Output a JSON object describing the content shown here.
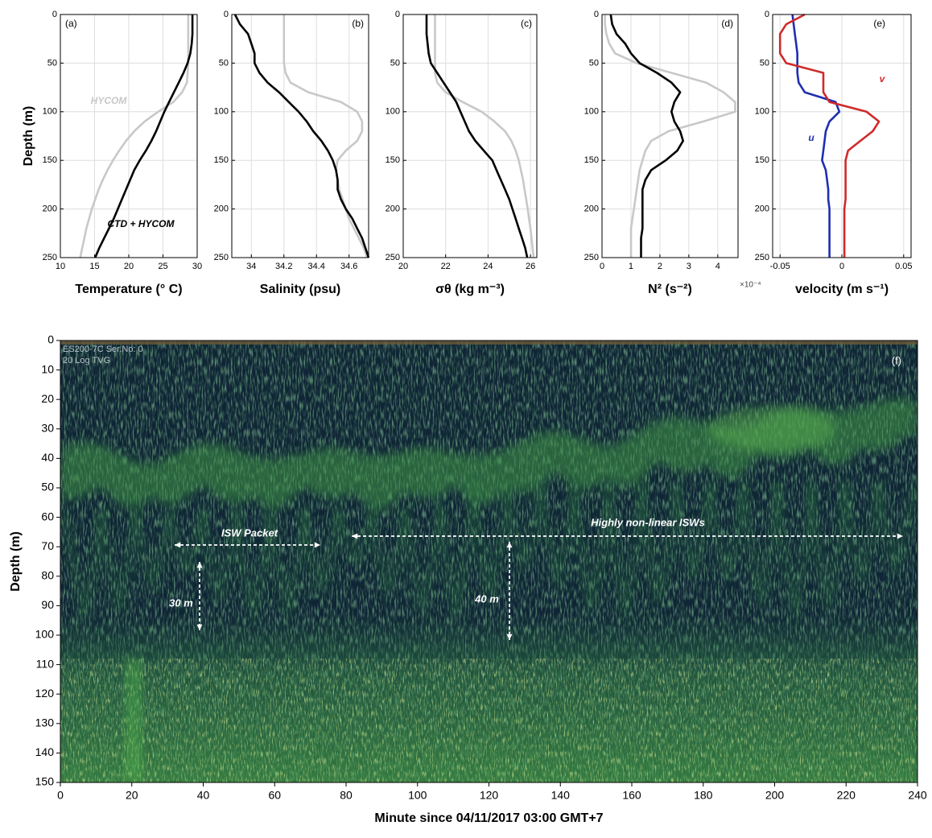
{
  "chart_data": [
    {
      "type": "line",
      "label": "(a)",
      "xlabel": "Temperature (° C)",
      "ylabel": "Depth (m)",
      "y": [
        0,
        10,
        20,
        30,
        40,
        50,
        60,
        70,
        80,
        90,
        100,
        110,
        120,
        130,
        140,
        150,
        160,
        170,
        180,
        190,
        200,
        210,
        220,
        230,
        240,
        250
      ],
      "series": [
        {
          "name": "HYCOM",
          "color": "#c8c8c8",
          "values": [
            28.7,
            28.7,
            28.7,
            28.7,
            28.7,
            28.7,
            28.6,
            28.5,
            27.8,
            26.5,
            24.3,
            22.3,
            20.8,
            19.6,
            18.6,
            17.7,
            16.9,
            16.2,
            15.6,
            15.1,
            14.6,
            14.2,
            13.8,
            13.5,
            13.2,
            12.9
          ]
        },
        {
          "name": "CTD + HYCOM",
          "color": "#000000",
          "values": [
            29.3,
            29.3,
            29.3,
            29.2,
            29.0,
            28.6,
            28.0,
            27.3,
            26.6,
            25.9,
            25.2,
            24.6,
            24.0,
            23.3,
            22.5,
            21.6,
            20.8,
            20.2,
            19.6,
            19.0,
            18.4,
            17.8,
            17.1,
            16.4,
            15.7,
            15.1
          ]
        }
      ],
      "xlim": [
        10,
        30
      ],
      "xticks": [
        10,
        15,
        20,
        25,
        30
      ],
      "ylim": [
        0,
        250
      ],
      "yticks": [
        0,
        50,
        100,
        150,
        200,
        250
      ],
      "grid": true
    },
    {
      "type": "line",
      "label": "(b)",
      "xlabel": "Salinity (psu)",
      "y": [
        0,
        10,
        20,
        30,
        40,
        50,
        60,
        70,
        80,
        90,
        100,
        110,
        120,
        130,
        140,
        150,
        160,
        170,
        180,
        190,
        200,
        210,
        220,
        230,
        240,
        250
      ],
      "series": [
        {
          "color": "#c8c8c8",
          "values": [
            34.2,
            34.2,
            34.2,
            34.2,
            34.2,
            34.2,
            34.21,
            34.24,
            34.35,
            34.55,
            34.65,
            34.68,
            34.68,
            34.65,
            34.58,
            34.53,
            34.52,
            34.53,
            34.54,
            34.56,
            34.58,
            34.6,
            34.63,
            34.66,
            34.69,
            34.71
          ]
        },
        {
          "color": "#000000",
          "values": [
            33.9,
            33.93,
            33.98,
            34.0,
            34.02,
            34.02,
            34.05,
            34.1,
            34.17,
            34.23,
            34.29,
            34.34,
            34.38,
            34.43,
            34.47,
            34.5,
            34.52,
            34.53,
            34.53,
            34.55,
            34.58,
            34.62,
            34.65,
            34.68,
            34.7,
            34.72
          ]
        }
      ],
      "xlim": [
        33.88,
        34.72
      ],
      "xticks": [
        34,
        34.2,
        34.4,
        34.6
      ],
      "ylim": [
        0,
        250
      ],
      "yticks": [
        0,
        50,
        100,
        150,
        200,
        250
      ],
      "grid": true
    },
    {
      "type": "line",
      "label": "(c)",
      "xlabel": "σθ (kg m⁻³)",
      "y": [
        0,
        10,
        20,
        30,
        40,
        50,
        60,
        70,
        80,
        90,
        100,
        110,
        120,
        130,
        140,
        150,
        160,
        170,
        180,
        190,
        200,
        210,
        220,
        230,
        240,
        250
      ],
      "series": [
        {
          "color": "#c8c8c8",
          "values": [
            21.5,
            21.5,
            21.5,
            21.5,
            21.5,
            21.5,
            21.5,
            21.6,
            22.0,
            22.8,
            23.7,
            24.3,
            24.8,
            25.1,
            25.3,
            25.45,
            25.55,
            25.65,
            25.72,
            25.8,
            25.87,
            25.93,
            26.0,
            26.05,
            26.1,
            26.15
          ]
        },
        {
          "color": "#000000",
          "values": [
            21.1,
            21.1,
            21.1,
            21.15,
            21.2,
            21.3,
            21.6,
            21.9,
            22.2,
            22.5,
            22.7,
            22.9,
            23.1,
            23.4,
            23.8,
            24.2,
            24.4,
            24.6,
            24.8,
            25.0,
            25.15,
            25.3,
            25.45,
            25.6,
            25.75,
            25.85
          ]
        }
      ],
      "xlim": [
        20,
        26.3
      ],
      "xticks": [
        20,
        22,
        24,
        26
      ],
      "ylim": [
        0,
        250
      ],
      "yticks": [
        0,
        50,
        100,
        150,
        200,
        250
      ],
      "grid": true
    },
    {
      "type": "line",
      "label": "(d)",
      "xlabel": "N² (s⁻²)",
      "x_multiplier_label": "×10⁻⁴",
      "y": [
        0,
        10,
        20,
        30,
        40,
        50,
        60,
        70,
        80,
        90,
        100,
        110,
        120,
        130,
        140,
        150,
        160,
        170,
        180,
        190,
        200,
        210,
        220,
        230,
        240,
        250
      ],
      "series": [
        {
          "color": "#c8c8c8",
          "values": [
            0.1,
            0.1,
            0.15,
            0.25,
            0.45,
            1.2,
            2.4,
            3.6,
            4.2,
            4.6,
            4.6,
            3.5,
            2.3,
            1.7,
            1.5,
            1.4,
            1.3,
            1.25,
            1.2,
            1.15,
            1.1,
            1.05,
            1.0,
            1.0,
            1.0,
            1.0
          ]
        },
        {
          "color": "#000000",
          "values": [
            0.3,
            0.35,
            0.5,
            0.8,
            1.0,
            1.3,
            1.9,
            2.4,
            2.7,
            2.5,
            2.4,
            2.5,
            2.7,
            2.8,
            2.6,
            2.2,
            1.7,
            1.5,
            1.4,
            1.4,
            1.4,
            1.4,
            1.4,
            1.35,
            1.35,
            1.35
          ]
        }
      ],
      "xlim": [
        0,
        4.7
      ],
      "xticks": [
        0,
        1,
        2,
        3,
        4
      ],
      "ylim": [
        0,
        250
      ],
      "yticks": [
        0,
        50,
        100,
        150,
        200,
        250
      ],
      "grid": true
    },
    {
      "type": "line",
      "label": "(e)",
      "xlabel": "velocity (m s⁻¹)",
      "y": [
        0,
        10,
        20,
        30,
        40,
        50,
        60,
        70,
        80,
        90,
        100,
        110,
        120,
        130,
        140,
        150,
        160,
        170,
        180,
        190,
        200,
        210,
        220,
        230,
        240,
        250
      ],
      "series": [
        {
          "name": "u",
          "color": "#1f2fb0",
          "values": [
            -0.04,
            -0.039,
            -0.038,
            -0.037,
            -0.036,
            -0.036,
            -0.036,
            -0.035,
            -0.03,
            -0.005,
            -0.002,
            -0.01,
            -0.013,
            -0.014,
            -0.015,
            -0.016,
            -0.013,
            -0.012,
            -0.011,
            -0.011,
            -0.01,
            -0.01,
            -0.01,
            -0.01,
            -0.01,
            -0.01
          ]
        },
        {
          "name": "v",
          "color": "#d02a2a",
          "values": [
            -0.03,
            -0.045,
            -0.05,
            -0.05,
            -0.05,
            -0.045,
            -0.015,
            -0.015,
            -0.015,
            -0.01,
            0.02,
            0.03,
            0.025,
            0.015,
            0.005,
            0.003,
            0.003,
            0.003,
            0.003,
            0.003,
            0.002,
            0.002,
            0.002,
            0.002,
            0.002,
            0.002
          ]
        }
      ],
      "xlim": [
        -0.056,
        0.056
      ],
      "xticks": [
        -0.05,
        0,
        0.05
      ],
      "ylim": [
        0,
        250
      ],
      "yticks": [
        0,
        50,
        100,
        150,
        200,
        250
      ],
      "grid": true
    },
    {
      "type": "echogram",
      "label": "(f)",
      "xlabel": "Minute since 04/11/2017 03:00 GMT+7",
      "ylabel": "Depth (m)",
      "instrument_text": [
        "ES200-7C Ser.No: 0",
        "20 Log TVG"
      ],
      "annotations": [
        "ISW Packet",
        "Highly non-linear ISWs",
        "30 m",
        "40 m"
      ],
      "xlim": [
        0,
        240
      ],
      "xticks": [
        0,
        20,
        40,
        60,
        80,
        100,
        120,
        140,
        160,
        180,
        200,
        220,
        240
      ],
      "ylim": [
        0,
        150
      ],
      "yticks": [
        0,
        10,
        20,
        30,
        40,
        50,
        60,
        70,
        80,
        90,
        100,
        110,
        120,
        130,
        140,
        150
      ]
    }
  ]
}
